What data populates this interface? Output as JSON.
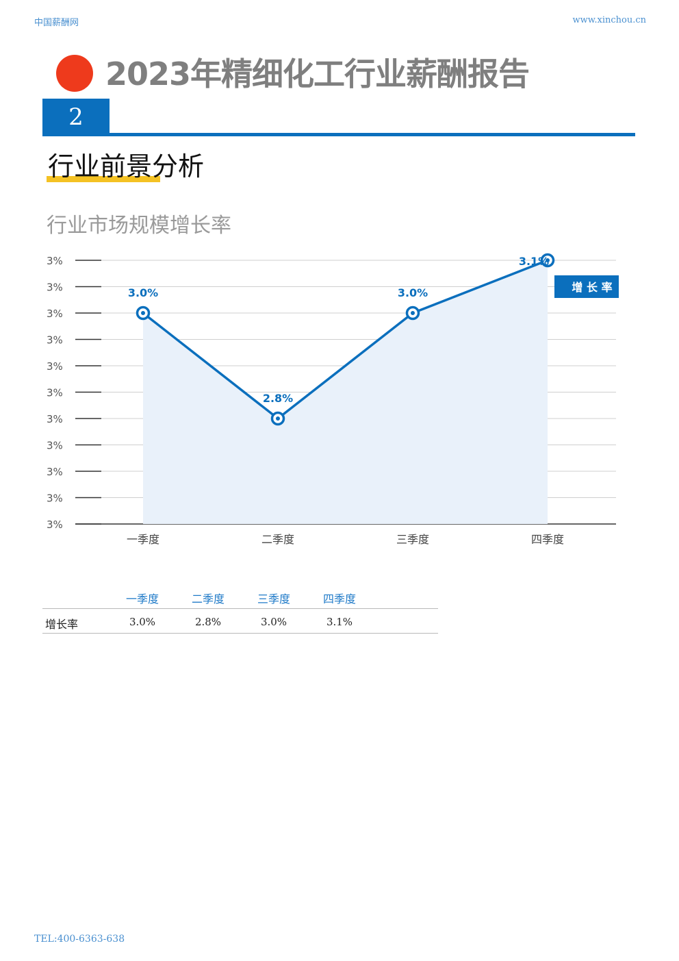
{
  "header": {
    "left": "中国薪酬网",
    "right": "www.xinchou.cn"
  },
  "report_title": "2023年精细化工行业薪酬报告",
  "section_number": "2",
  "section_title": "行业前景分析",
  "chart_title": "行业市场规模增长率",
  "chart_data": {
    "type": "line",
    "title": "行业市场规模增长率",
    "categories": [
      "一季度",
      "二季度",
      "三季度",
      "四季度"
    ],
    "series": [
      {
        "name": "增长率",
        "values": [
          3.0,
          2.8,
          3.0,
          3.1
        ],
        "labels": [
          "3.0%",
          "2.8%",
          "3.0%",
          "3.1%"
        ]
      }
    ],
    "y_tick_labels": [
      "3%",
      "3%",
      "3%",
      "3%",
      "3%",
      "3%",
      "3%",
      "3%",
      "3%",
      "3%",
      "3%"
    ],
    "ylim": [
      2.6,
      3.1
    ],
    "grid": true,
    "legend_position": "top-right",
    "colors": {
      "line": "#0b6fbd",
      "area": "#e9f1fa",
      "legend_bg": "#0b6fbd"
    }
  },
  "legend_label": "增 长 率",
  "table": {
    "headers": [
      "一季度",
      "二季度",
      "三季度",
      "四季度"
    ],
    "row_label": "增长率",
    "values": [
      "3.0%",
      "2.8%",
      "3.0%",
      "3.1%"
    ]
  },
  "footer": "TEL:400-6363-638"
}
